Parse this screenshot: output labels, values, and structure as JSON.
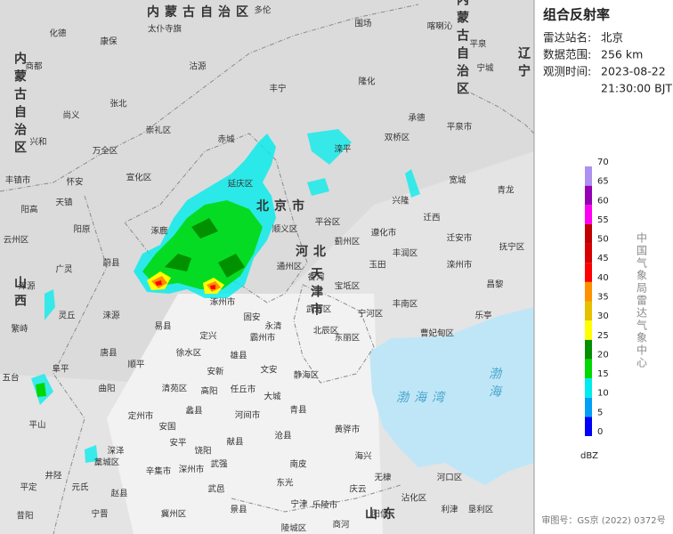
{
  "panel": {
    "title": "组合反射率",
    "station_label": "雷达站名:",
    "station": "北京",
    "range_label": "数据范围:",
    "range": "256 km",
    "time_label": "观测时间:",
    "date": "2023-08-22",
    "time": "21:30:00 BJT"
  },
  "legend": {
    "ticks": [
      70,
      65,
      60,
      55,
      50,
      45,
      40,
      35,
      30,
      25,
      20,
      15,
      10,
      5,
      0
    ],
    "colors": [
      "#0000f6",
      "#01a0f6",
      "#00ecec",
      "#00d800",
      "#019000",
      "#ffff00",
      "#e7c000",
      "#ff9000",
      "#ff0000",
      "#d60000",
      "#c00000",
      "#ff00f0",
      "#9600b4",
      "#ad90f0"
    ],
    "unit": "dBZ",
    "organization": "中国气象局雷达气象中心"
  },
  "footer": "审图号：GS京 (2022) 0372号",
  "regions": [
    "内蒙古自治区",
    "内蒙古自治区",
    "内蒙古自治区",
    "北京市",
    "天津市",
    "河北",
    "山西",
    "辽宁",
    "山东",
    "渤海湾",
    "渤海"
  ],
  "map_labels": [
    "多伦",
    "化德",
    "太仆寺旗",
    "康保",
    "围场",
    "喀喇沁",
    "商都",
    "沽源",
    "丰宁",
    "隆化",
    "平泉",
    "宁城",
    "尚义",
    "张北",
    "崇礼区",
    "承德",
    "平泉市",
    "兴和",
    "万全区",
    "赤城",
    "双桥区",
    "滦平",
    "丰镇市",
    "怀安",
    "宣化区",
    "延庆区",
    "兴隆",
    "宽城",
    "天镇",
    "阳高",
    "青龙",
    "迁西",
    "遵化市",
    "迁安市",
    "抚宁区",
    "云州区",
    "阳原",
    "涿鹿",
    "顺义区",
    "平谷区",
    "蓟州区",
    "玉田",
    "丰润区",
    "滦州市",
    "昌黎",
    "广灵",
    "浑源",
    "蔚县",
    "灵丘",
    "涞源",
    "易县",
    "涿州市",
    "通州区",
    "香河",
    "宝坻区",
    "丰南区",
    "乐亭",
    "繁峙",
    "唐县",
    "顺平",
    "定兴",
    "固安",
    "永清",
    "武清区",
    "宁河区",
    "曹妃甸区",
    "徐水区",
    "雄县",
    "霸州市",
    "北辰区",
    "东丽区",
    "静海区",
    "五台",
    "阜平",
    "曲阳",
    "安新",
    "文安",
    "高阳",
    "任丘市",
    "定州市",
    "清苑区",
    "大城",
    "蠡县",
    "河间市",
    "青县",
    "黄骅市",
    "安国",
    "献县",
    "沧县",
    "平山",
    "深泽",
    "藁城区",
    "安平",
    "饶阳",
    "武强",
    "南皮",
    "海兴",
    "井陉",
    "元氏",
    "辛集市",
    "深州市",
    "武邑",
    "东光",
    "无棣",
    "河口区",
    "赵县",
    "冀州区",
    "景县",
    "宁津",
    "乐陵市",
    "庆云",
    "沾化区",
    "垦利区",
    "利津",
    "宁晋",
    "昔阳",
    "平定",
    "陵城区",
    "阳信",
    "商河"
  ]
}
